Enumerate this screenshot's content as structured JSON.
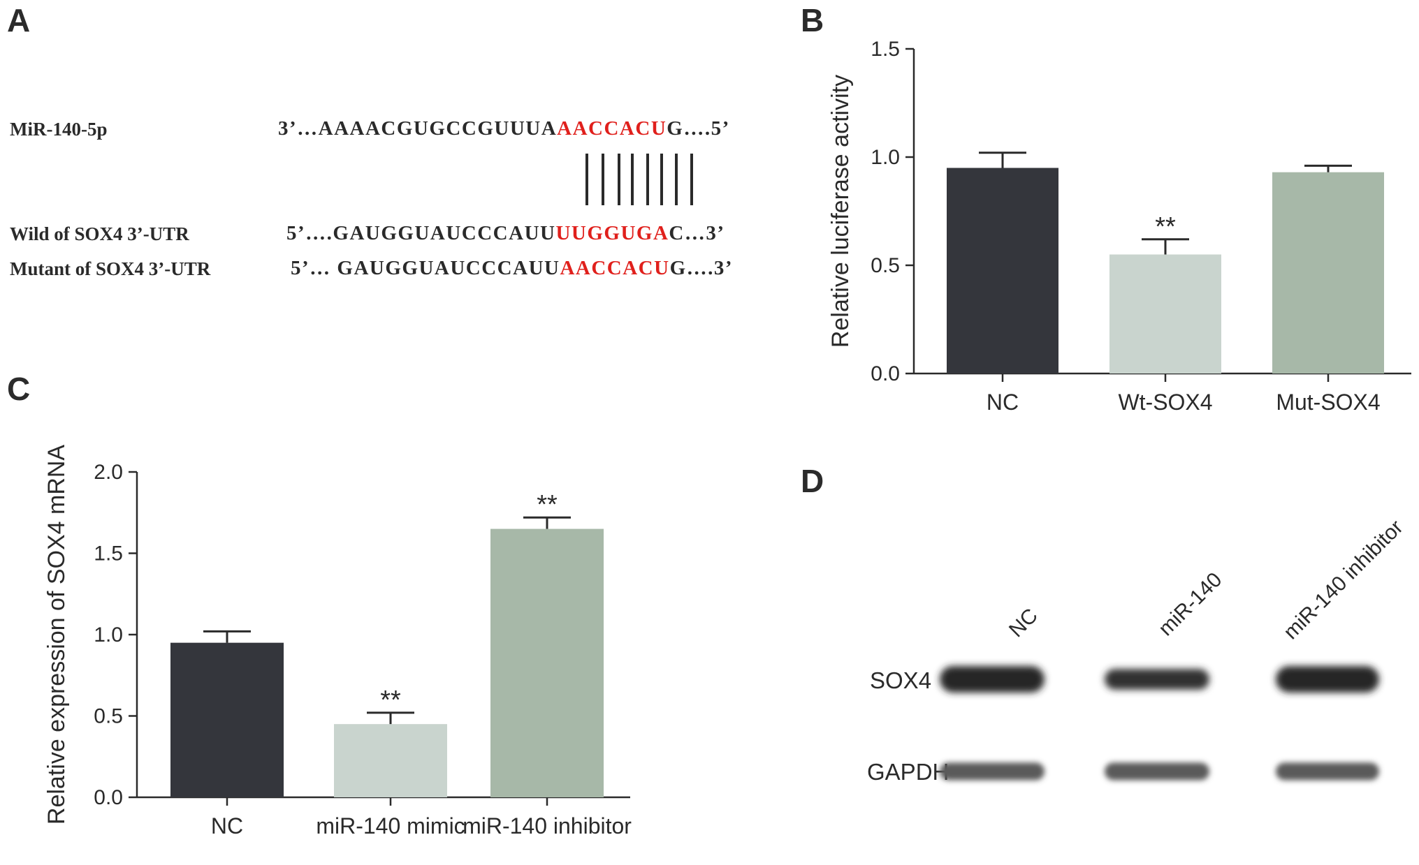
{
  "panels": {
    "a": "A",
    "b": "B",
    "c": "C",
    "d": "D"
  },
  "sequences": {
    "mir": {
      "label": "MiR-140-5p",
      "prefix": "3’…AAAACGUGCCGUUUA",
      "highlight": "AACCACU",
      "suffix": "G….5’"
    },
    "wild": {
      "label": "Wild of SOX4 3’-UTR",
      "prefix": "5’….GAUGGUAUCCCAUU",
      "highlight": "UUGGUGA",
      "suffix": "C…3’"
    },
    "mutant": {
      "label": "Mutant of SOX4 3’-UTR",
      "prefix": "5’… GAUGGUAUCCCAUU",
      "highlight": "AACCACU",
      "suffix": "G….3’"
    },
    "highlight_color": "#e0201c"
  },
  "chart_data": [
    {
      "panel": "B",
      "type": "bar",
      "categories": [
        "NC",
        "Wt-SOX4",
        "Mut-SOX4"
      ],
      "values": [
        0.95,
        0.55,
        0.93
      ],
      "errors": [
        0.07,
        0.07,
        0.03
      ],
      "significance": [
        "",
        "**",
        ""
      ],
      "colors": [
        "#34363c",
        "#c9d4ce",
        "#a7b8a8"
      ],
      "ylabel": "Relative  luciferase activity",
      "ylim": [
        0,
        1.5
      ],
      "yticks": [
        0.0,
        0.5,
        1.0,
        1.5
      ],
      "ytick_labels": [
        "0.0",
        "0.5",
        "1.0",
        "1.5"
      ]
    },
    {
      "panel": "C",
      "type": "bar",
      "categories": [
        "NC",
        "miR-140 mimic",
        "miR-140 inhibitor"
      ],
      "values": [
        0.95,
        0.45,
        1.65
      ],
      "errors": [
        0.07,
        0.07,
        0.07
      ],
      "significance": [
        "",
        "**",
        "**"
      ],
      "colors": [
        "#34363c",
        "#c9d4ce",
        "#a7b8a8"
      ],
      "ylabel": "Relative expression of SOX4 mRNA",
      "ylim": [
        0,
        2.0
      ],
      "yticks": [
        0.0,
        0.5,
        1.0,
        1.5,
        2.0
      ],
      "ytick_labels": [
        "0.0",
        "0.5",
        "1.0",
        "1.5",
        "2.0"
      ]
    }
  ],
  "blot": {
    "lanes": [
      "NC",
      "miR-140",
      "miR-140 inhibitor"
    ],
    "rows": [
      "SOX4",
      "GAPDH"
    ],
    "sox4_intensity": [
      1.0,
      0.62,
      1.0
    ],
    "gapdh_intensity": [
      0.8,
      0.8,
      0.8
    ]
  }
}
